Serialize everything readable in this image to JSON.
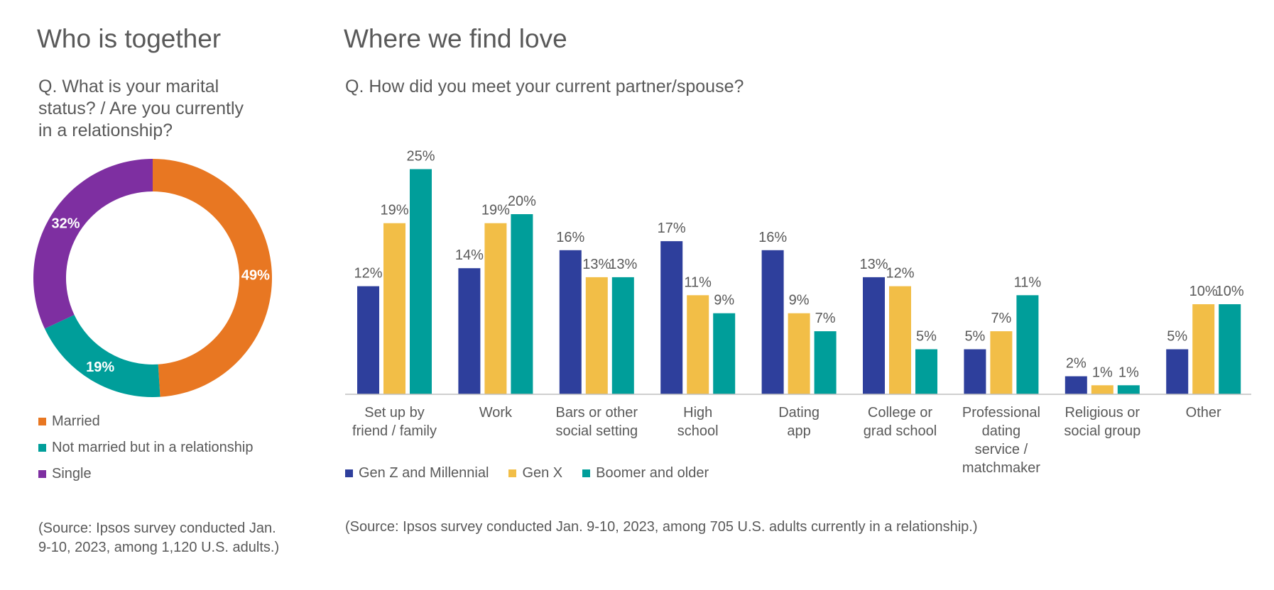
{
  "colors": {
    "married": "#E87722",
    "relationship": "#009E9A",
    "single": "#7E2FA1",
    "genz": "#2E3F9C",
    "genx": "#F2BE47",
    "boomer": "#009E9A",
    "axis": "#BFBFBF",
    "text": "#595959"
  },
  "left": {
    "title": "Who is together",
    "question_lines": [
      "Q. What is your marital",
      "status? / Are you currently",
      "in a relationship?"
    ],
    "source_lines": [
      "(Source: Ipsos survey conducted Jan.",
      "9-10, 2023, among 1,120 U.S. adults.)"
    ]
  },
  "right": {
    "title": "Where we find love",
    "question": "Q. How did you meet your current partner/spouse?",
    "source": "(Source: Ipsos survey conducted Jan. 9-10, 2023, among 705 U.S. adults currently in a relationship.)"
  },
  "chart_data": [
    {
      "type": "pie",
      "variant": "donut",
      "title": "Who is together",
      "categories": [
        "Married",
        "Not married but in a relationship",
        "Single"
      ],
      "values": [
        49,
        19,
        32
      ],
      "labels": [
        "49%",
        "19%",
        "32%"
      ],
      "legend": "bottom"
    },
    {
      "type": "bar",
      "title": "Where we find love",
      "categories": [
        [
          "Set up by",
          "friend / family"
        ],
        [
          "Work"
        ],
        [
          "Bars or other",
          "social setting"
        ],
        [
          "High",
          "school"
        ],
        [
          "Dating",
          "app"
        ],
        [
          "College or",
          "grad school"
        ],
        [
          "Professional",
          "dating",
          "service /",
          "matchmaker"
        ],
        [
          "Religious or",
          "social group"
        ],
        [
          "Other"
        ]
      ],
      "series": [
        {
          "name": "Gen Z and Millennial",
          "values": [
            12,
            14,
            16,
            17,
            16,
            13,
            5,
            2,
            5
          ]
        },
        {
          "name": "Gen X",
          "values": [
            19,
            19,
            13,
            11,
            9,
            12,
            7,
            1,
            10
          ]
        },
        {
          "name": "Boomer and older",
          "values": [
            25,
            20,
            13,
            9,
            7,
            5,
            11,
            1,
            10
          ]
        }
      ],
      "value_suffix": "%",
      "ylim": [
        0,
        25
      ],
      "grid": false,
      "legend": "bottom-left"
    }
  ]
}
